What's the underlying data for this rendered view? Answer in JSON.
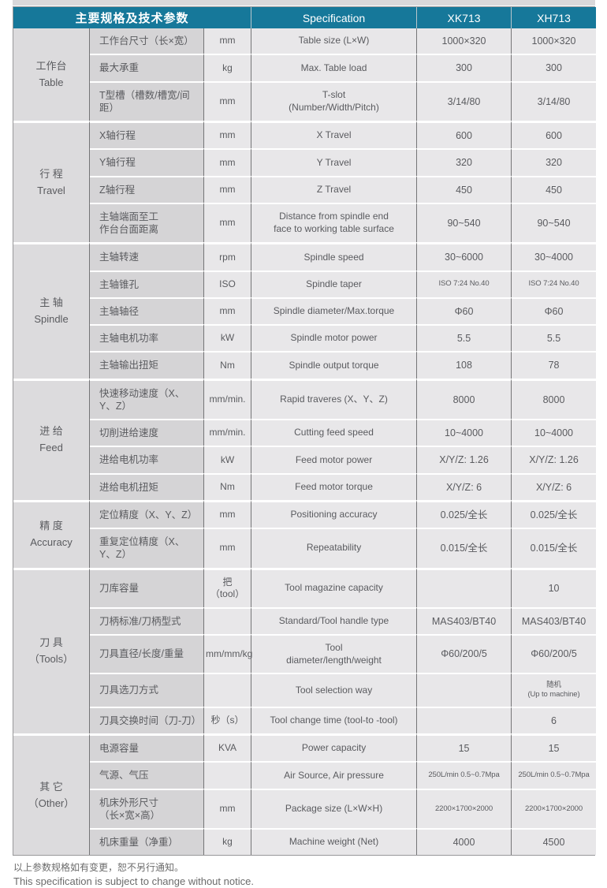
{
  "colors": {
    "header_bg": "#16789a",
    "header_text": "#ffffff",
    "cell_light": "#e8e7e9",
    "cell_dark1": "#dcdbdd",
    "cell_dark2": "#d5d4d6",
    "vline": "#757577",
    "outer": "#98989a",
    "hline": "#ffffff",
    "strip": "#d9d8da",
    "text": "#5a5b5f"
  },
  "header": {
    "title_cn": "主要规格及技术参数",
    "title_en": "Specification",
    "model1": "XK713",
    "model2": "XH713"
  },
  "sections": [
    {
      "group": "工作台\nTable",
      "rows": [
        {
          "cn": "工作台尺寸（长×宽）",
          "unit": "mm",
          "en": "Table size (L×W)",
          "xk713": "1000×320",
          "xh713": "1000×320"
        },
        {
          "cn": "最大承重",
          "unit": "kg",
          "en": "Max. Table load",
          "xk713": "300",
          "xh713": "300"
        },
        {
          "cn": "T型槽（槽数/槽宽/间距）",
          "unit": "mm",
          "en": "T-slot\n(Number/Width/Pitch)",
          "xk713": "3/14/80",
          "xh713": "3/14/80"
        }
      ]
    },
    {
      "group": "行 程\nTravel",
      "rows": [
        {
          "cn": "X轴行程",
          "unit": "mm",
          "en": "X Travel",
          "xk713": "600",
          "xh713": "600"
        },
        {
          "cn": "Y轴行程",
          "unit": "mm",
          "en": "Y Travel",
          "xk713": "320",
          "xh713": "320"
        },
        {
          "cn": "Z轴行程",
          "unit": "mm",
          "en": "Z Travel",
          "xk713": "450",
          "xh713": "450"
        },
        {
          "cn": "主轴端面至工\n作台台面距离",
          "unit": "mm",
          "en": "Distance from spindle end\nface to working table surface",
          "xk713": "90~540",
          "xh713": "90~540"
        }
      ]
    },
    {
      "group": "主 轴\nSpindle",
      "rows": [
        {
          "cn": "主轴转速",
          "unit": "rpm",
          "en": "Spindle speed",
          "xk713": "30~6000",
          "xh713": "30~4000"
        },
        {
          "cn": "主轴锥孔",
          "unit": "ISO",
          "en": "Spindle taper",
          "xk713": "ISO 7:24  No.40",
          "xh713": "ISO 7:24  No.40"
        },
        {
          "cn": "主轴轴径",
          "unit": "mm",
          "en": "Spindle diameter/Max.torque",
          "xk713": "Φ60",
          "xh713": "Φ60"
        },
        {
          "cn": "主轴电机功率",
          "unit": "kW",
          "en": "Spindle motor power",
          "xk713": "5.5",
          "xh713": "5.5"
        },
        {
          "cn": "主轴输出扭矩",
          "unit": "Nm",
          "en": "Spindle output torque",
          "xk713": "108",
          "xh713": "78"
        }
      ]
    },
    {
      "group": "进 给\nFeed",
      "rows": [
        {
          "cn": "快速移动速度（X、Y、Z）",
          "unit": "mm/min.",
          "en": "Rapid traveres (X、Y、Z)",
          "xk713": "8000",
          "xh713": "8000"
        },
        {
          "cn": "切削进给速度",
          "unit": "mm/min.",
          "en": "Cutting feed speed",
          "xk713": "10~4000",
          "xh713": "10~4000"
        },
        {
          "cn": "进给电机功率",
          "unit": "kW",
          "en": "Feed motor power",
          "xk713": "X/Y/Z: 1.26",
          "xh713": "X/Y/Z: 1.26"
        },
        {
          "cn": "进给电机扭矩",
          "unit": "Nm",
          "en": "Feed motor torque",
          "xk713": "X/Y/Z: 6",
          "xh713": "X/Y/Z: 6"
        }
      ]
    },
    {
      "group": "精 度\nAccuracy",
      "rows": [
        {
          "cn": "定位精度（X、Y、Z）",
          "unit": "mm",
          "en": "Positioning accuracy",
          "xk713": "0.025/全长",
          "xh713": "0.025/全长"
        },
        {
          "cn": "重复定位精度（X、Y、Z）",
          "unit": "mm",
          "en": "Repeatability",
          "xk713": "0.015/全长",
          "xh713": "0.015/全长"
        }
      ]
    },
    {
      "group": "刀 具\n（Tools）",
      "rows": [
        {
          "cn": "刀库容量",
          "unit": "把\n（tool）",
          "en": "Tool magazine capacity",
          "xk713": "",
          "xh713": "10"
        },
        {
          "cn": "刀柄标准/刀柄型式",
          "unit": "",
          "en": "Standard/Tool handle type",
          "xk713": "MAS403/BT40",
          "xh713": "MAS403/BT40"
        },
        {
          "cn": "刀具直径/长度/重量",
          "unit": "mm/mm/kg",
          "en": "Tool\ndiameter/length/weight",
          "xk713": "Φ60/200/5",
          "xh713": "Φ60/200/5"
        },
        {
          "cn": "刀具选刀方式",
          "unit": "",
          "en": "Tool selection way",
          "xk713": "",
          "xh713": "随机\n(Up to machine)"
        },
        {
          "cn": "刀具交换时间（刀-刀）",
          "unit": "秒（s）",
          "en": "Tool change time (tool-to -tool)",
          "xk713": "",
          "xh713": "6"
        }
      ]
    },
    {
      "group": "其 它\n（Other）",
      "rows": [
        {
          "cn": "电源容量",
          "unit": "KVA",
          "en": "Power capacity",
          "xk713": "15",
          "xh713": "15"
        },
        {
          "cn": "气源、气压",
          "unit": "",
          "en": "Air Source, Air pressure",
          "xk713": "250L/min  0.5~0.7Mpa",
          "xh713": "250L/min  0.5~0.7Mpa"
        },
        {
          "cn": "机床外形尺寸\n（长×宽×高）",
          "unit": "mm",
          "en": "Package size (L×W×H)",
          "xk713": "2200×1700×2000",
          "xh713": "2200×1700×2000"
        },
        {
          "cn": "机床重量（净重）",
          "unit": "kg",
          "en": "Machine weight (Net)",
          "xk713": "4000",
          "xh713": "4500"
        }
      ]
    }
  ],
  "footer": {
    "note_cn": "以上参数规格如有变更，恕不另行通知。",
    "note_en": "This specification is subject  to change without notice."
  }
}
